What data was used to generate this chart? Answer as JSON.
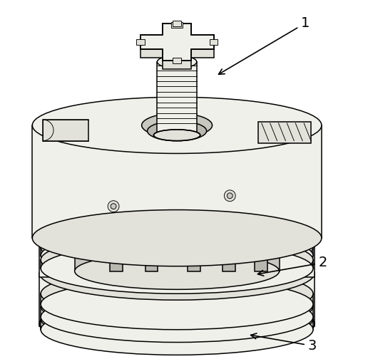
{
  "background_color": "#ffffff",
  "figure_width": 5.16,
  "figure_height": 5.11,
  "dpi": 100,
  "label_1": "1",
  "label_2": "2",
  "label_3": "3",
  "fill_light": "#f0f0ea",
  "fill_mid": "#e2e2da",
  "fill_dark": "#c8c8c0",
  "fill_shadow": "#b8b8b0",
  "line_color": "#000000",
  "lw_main": 1.1,
  "lw_thin": 0.65
}
